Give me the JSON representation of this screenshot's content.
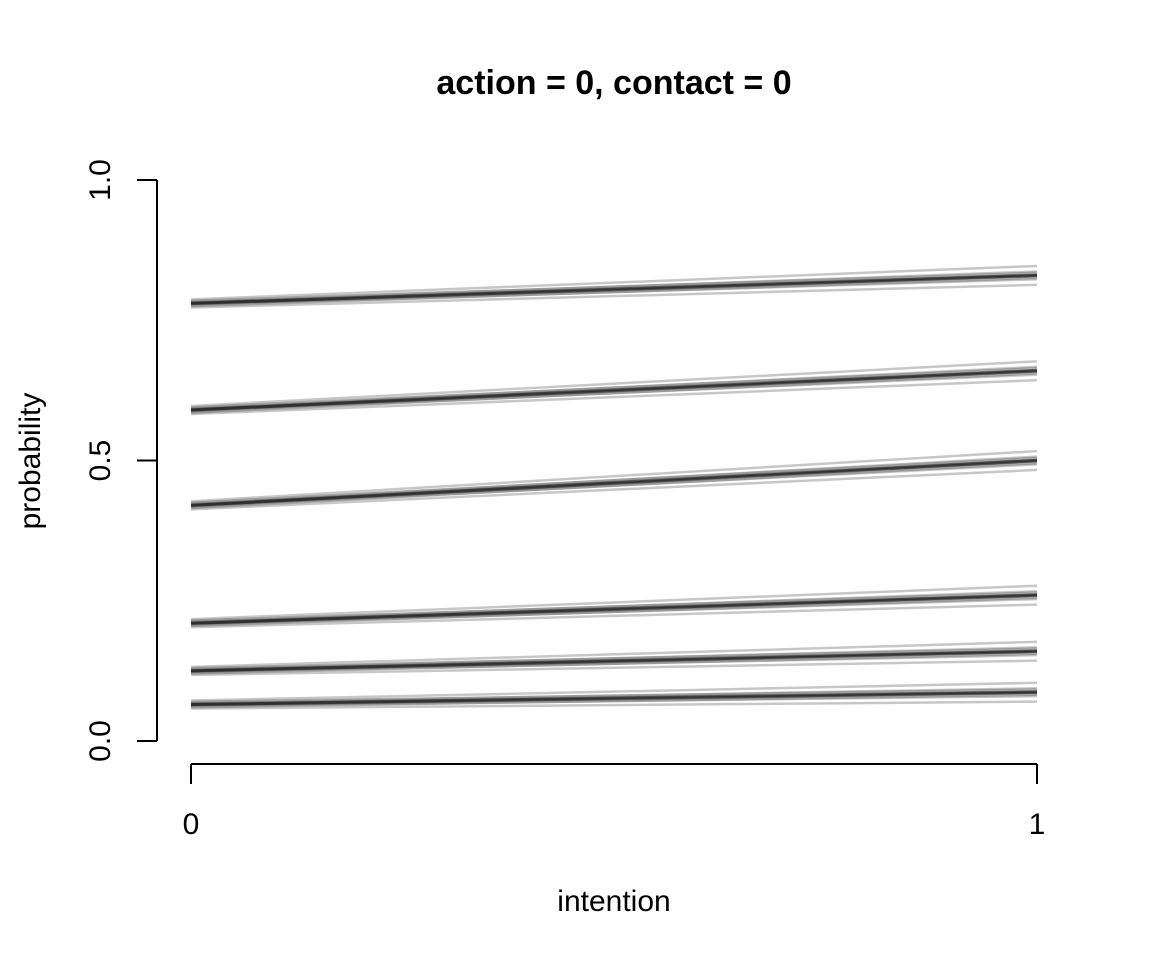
{
  "chart_data": {
    "type": "line",
    "title": "action = 0, contact = 0",
    "xlabel": "intention",
    "ylabel": "probability",
    "xlim": [
      0,
      1
    ],
    "ylim": [
      0,
      1
    ],
    "x_ticks": [
      "0",
      "1"
    ],
    "y_ticks": [
      "0.0",
      "0.5",
      "1.0"
    ],
    "grid": false,
    "legend": "none",
    "line_color": "#000000",
    "line_alpha": 0.1,
    "series": [
      {
        "x": [
          0,
          1
        ],
        "values": [
          0.78,
          0.83
        ]
      },
      {
        "x": [
          0,
          1
        ],
        "values": [
          0.59,
          0.66
        ]
      },
      {
        "x": [
          0,
          1
        ],
        "values": [
          0.42,
          0.5
        ]
      },
      {
        "x": [
          0,
          1
        ],
        "values": [
          0.21,
          0.26
        ]
      },
      {
        "x": [
          0,
          1
        ],
        "values": [
          0.125,
          0.16
        ]
      },
      {
        "x": [
          0,
          1
        ],
        "values": [
          0.065,
          0.087
        ]
      }
    ]
  }
}
